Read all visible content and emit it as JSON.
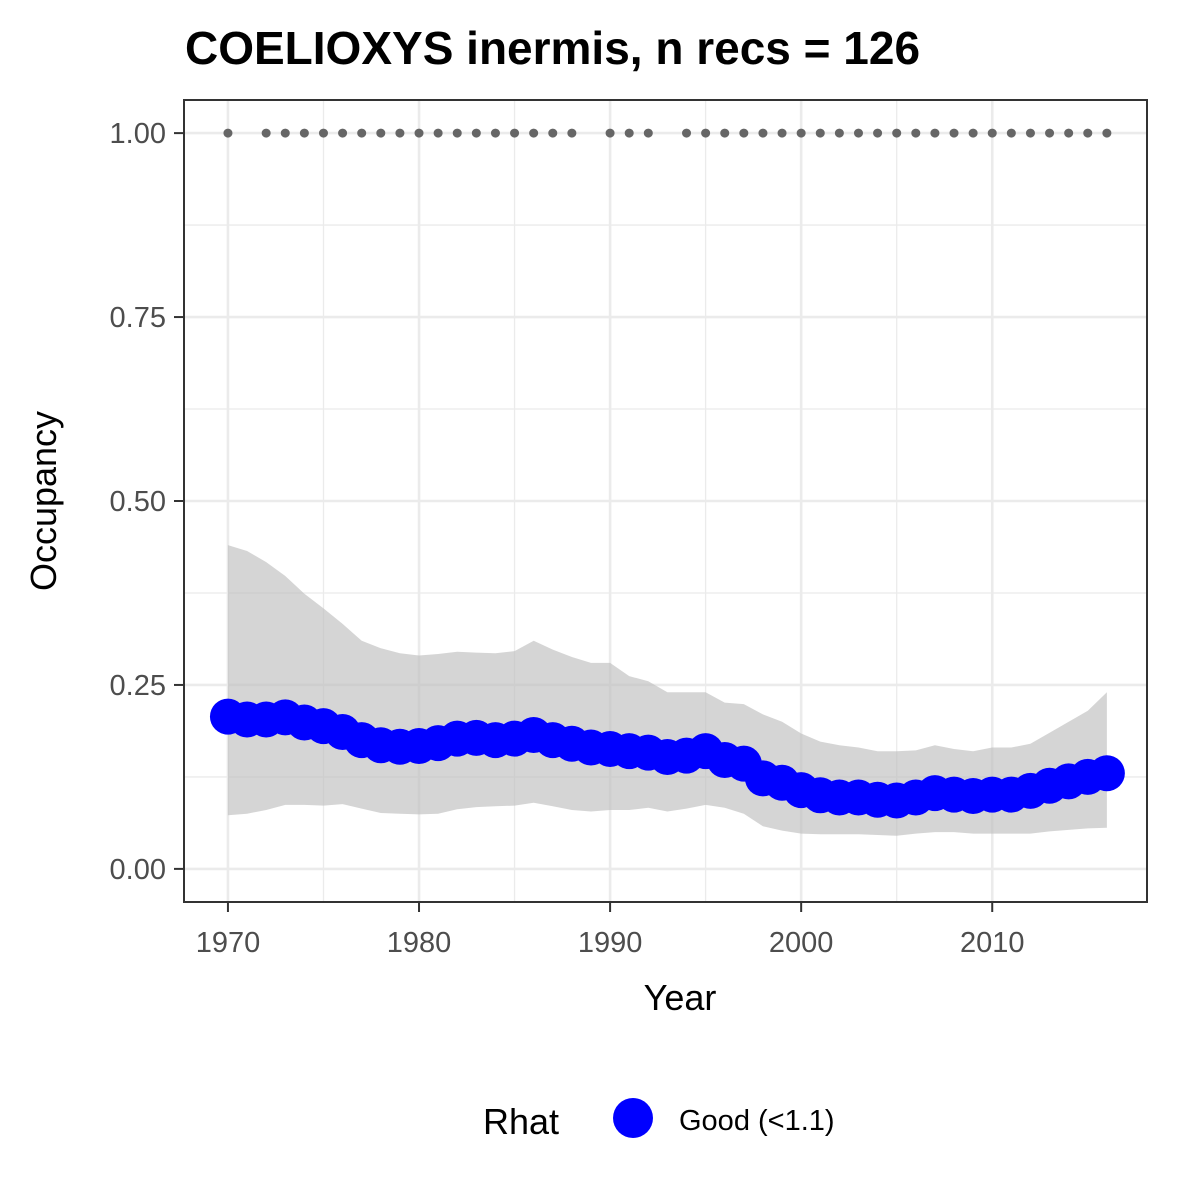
{
  "chart_data": {
    "type": "line",
    "title": "COELIOXYS inermis, n recs = 126",
    "xlabel": "Year",
    "ylabel": "Occupancy",
    "xlim": [
      1967.7,
      2018.1
    ],
    "ylim": [
      -0.045,
      1.045
    ],
    "x_ticks": [
      1970,
      1980,
      1990,
      2000,
      2010
    ],
    "x_tick_labels": [
      "1970",
      "1980",
      "1990",
      "2000",
      "2010"
    ],
    "y_ticks": [
      0,
      0.25,
      0.5,
      0.75,
      1
    ],
    "y_tick_labels": [
      "0.00",
      "0.25",
      "0.50",
      "0.75",
      "1.00"
    ],
    "grid": true,
    "years": [
      1970,
      1971,
      1972,
      1973,
      1974,
      1975,
      1976,
      1977,
      1978,
      1979,
      1980,
      1981,
      1982,
      1983,
      1984,
      1985,
      1986,
      1987,
      1988,
      1989,
      1990,
      1991,
      1992,
      1993,
      1994,
      1995,
      1996,
      1997,
      1998,
      1999,
      2000,
      2001,
      2002,
      2003,
      2004,
      2005,
      2006,
      2007,
      2008,
      2009,
      2010,
      2011,
      2012,
      2013,
      2014,
      2015,
      2016
    ],
    "occupancy": [
      0.207,
      0.203,
      0.203,
      0.206,
      0.199,
      0.194,
      0.186,
      0.175,
      0.168,
      0.166,
      0.167,
      0.171,
      0.177,
      0.178,
      0.175,
      0.177,
      0.182,
      0.175,
      0.17,
      0.165,
      0.163,
      0.16,
      0.158,
      0.152,
      0.154,
      0.16,
      0.148,
      0.143,
      0.123,
      0.117,
      0.107,
      0.1,
      0.097,
      0.097,
      0.094,
      0.093,
      0.097,
      0.103,
      0.101,
      0.099,
      0.101,
      0.101,
      0.106,
      0.113,
      0.119,
      0.125,
      0.13
    ],
    "ci_upper": [
      0.44,
      0.432,
      0.417,
      0.398,
      0.374,
      0.354,
      0.333,
      0.31,
      0.3,
      0.293,
      0.29,
      0.292,
      0.295,
      0.294,
      0.293,
      0.296,
      0.31,
      0.298,
      0.288,
      0.28,
      0.28,
      0.262,
      0.255,
      0.24,
      0.24,
      0.24,
      0.226,
      0.224,
      0.21,
      0.2,
      0.184,
      0.173,
      0.168,
      0.165,
      0.16,
      0.16,
      0.161,
      0.168,
      0.163,
      0.16,
      0.165,
      0.165,
      0.17,
      0.185,
      0.2,
      0.215,
      0.24
    ],
    "ci_lower": [
      0.073,
      0.075,
      0.08,
      0.087,
      0.087,
      0.086,
      0.088,
      0.082,
      0.076,
      0.075,
      0.074,
      0.075,
      0.081,
      0.084,
      0.085,
      0.086,
      0.09,
      0.085,
      0.08,
      0.078,
      0.08,
      0.08,
      0.083,
      0.078,
      0.082,
      0.087,
      0.083,
      0.075,
      0.058,
      0.052,
      0.048,
      0.047,
      0.047,
      0.047,
      0.046,
      0.045,
      0.048,
      0.05,
      0.05,
      0.048,
      0.048,
      0.048,
      0.048,
      0.051,
      0.053,
      0.055,
      0.056
    ],
    "record_years": [
      1970,
      1972,
      1973,
      1974,
      1975,
      1976,
      1977,
      1978,
      1979,
      1980,
      1981,
      1982,
      1983,
      1984,
      1985,
      1986,
      1987,
      1988,
      1990,
      1991,
      1992,
      1994,
      1995,
      1996,
      1997,
      1998,
      1999,
      2000,
      2001,
      2002,
      2003,
      2004,
      2005,
      2006,
      2007,
      2008,
      2009,
      2010,
      2011,
      2012,
      2013,
      2014,
      2015,
      2016
    ],
    "record_value": 1.0,
    "legend": {
      "title": "Rhat",
      "entries": [
        {
          "label": "Good (<1.1)",
          "color": "#0000ff"
        }
      ],
      "placement": "bottom"
    },
    "colors": {
      "line": "#0000ff",
      "ribbon": "#bfbfbf",
      "records": "#666666",
      "panel_border": "#333333",
      "grid": "#ebebeb"
    }
  }
}
